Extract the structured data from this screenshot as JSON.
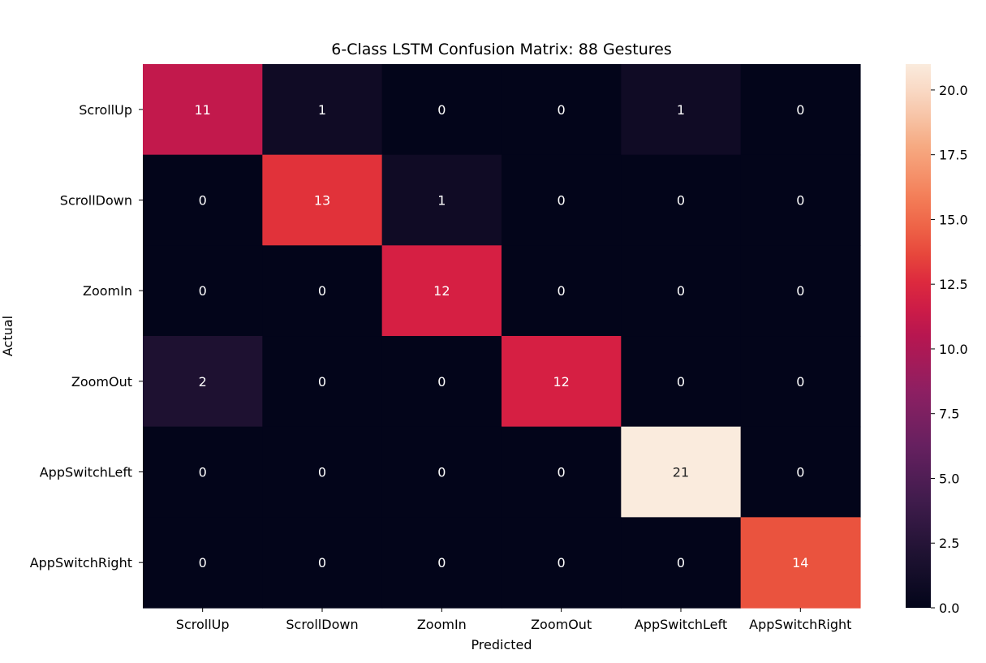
{
  "chart_data": {
    "type": "heatmap",
    "title": "6-Class LSTM Confusion Matrix: 88 Gestures",
    "xlabel": "Predicted",
    "ylabel": "Actual",
    "x_categories": [
      "ScrollUp",
      "ScrollDown",
      "ZoomIn",
      "ZoomOut",
      "AppSwitchLeft",
      "AppSwitchRight"
    ],
    "y_categories": [
      "ScrollUp",
      "ScrollDown",
      "ZoomIn",
      "ZoomOut",
      "AppSwitchLeft",
      "AppSwitchRight"
    ],
    "values": [
      [
        11,
        1,
        0,
        0,
        1,
        0
      ],
      [
        0,
        13,
        1,
        0,
        0,
        0
      ],
      [
        0,
        0,
        12,
        0,
        0,
        0
      ],
      [
        2,
        0,
        0,
        12,
        0,
        0
      ],
      [
        0,
        0,
        0,
        0,
        21,
        0
      ],
      [
        0,
        0,
        0,
        0,
        0,
        14
      ]
    ],
    "vmin": 0,
    "vmax": 21,
    "colorbar_ticks": [
      "0.0",
      "2.5",
      "5.0",
      "7.5",
      "10.0",
      "12.5",
      "15.0",
      "17.5",
      "20.0"
    ],
    "colormap": "rocket",
    "grid": false,
    "legend": "colorbar-right"
  }
}
